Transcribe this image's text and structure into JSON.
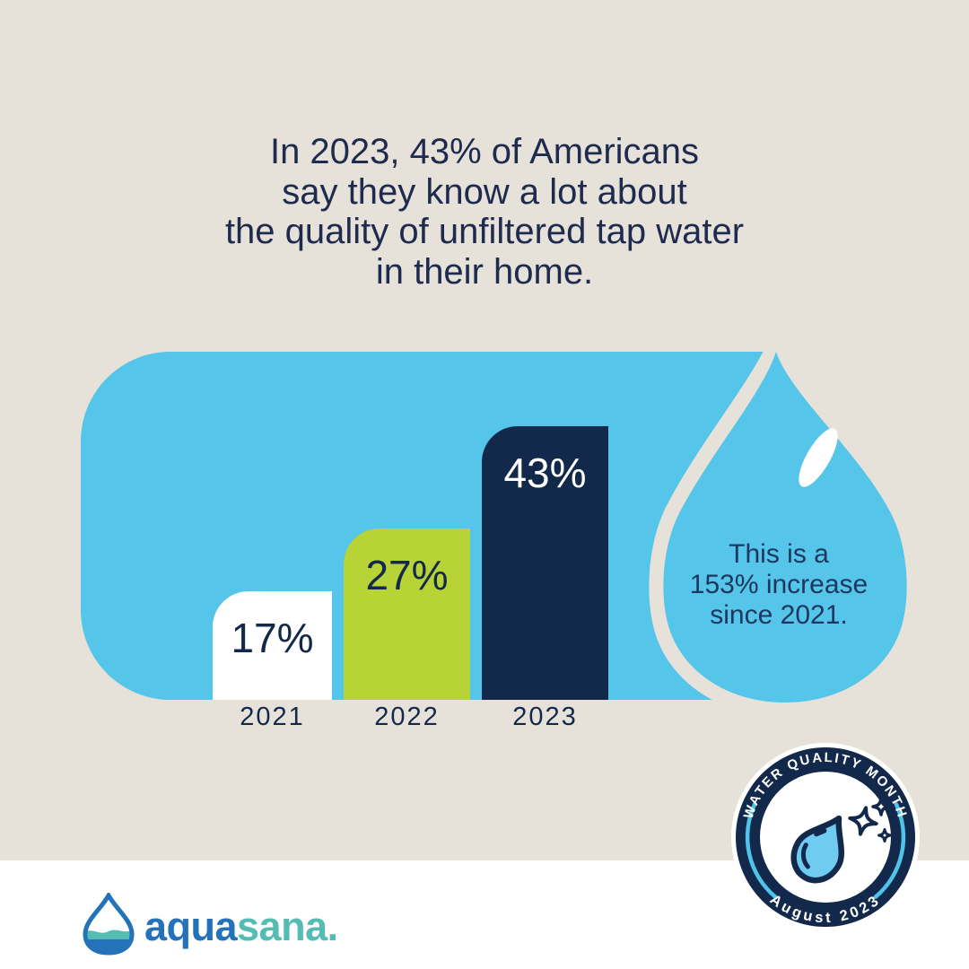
{
  "infographic": {
    "headline_lines": [
      "In 2023, 43% of Americans",
      "say they know a lot about",
      "the quality of unfiltered tap water",
      "in their home."
    ],
    "callout_lines": [
      "This is a",
      "153% increase",
      "since 2021."
    ],
    "badge": {
      "arc_top": "WATER QUALITY MONTH",
      "arc_bottom": "August 2023"
    },
    "logo": {
      "part1": "aqua",
      "part2": "sana",
      "suffix": "."
    }
  },
  "chart_data": {
    "type": "bar",
    "categories": [
      "2021",
      "2022",
      "2023"
    ],
    "values": [
      17,
      27,
      43
    ],
    "value_labels": [
      "17%",
      "27%",
      "43%"
    ],
    "unit": "percent of Americans",
    "title": "In 2023, 43% of Americans say they know a lot about the quality of unfiltered tap water in their home.",
    "annotation": "This is a 153% increase since 2021.",
    "ylim": [
      0,
      55
    ],
    "grid": false,
    "legend": false,
    "bar_colors": [
      "#FFFFFF",
      "#B7D335",
      "#13294B"
    ],
    "value_label_colors": [
      "#13294B",
      "#13294B",
      "#FFFFFF"
    ]
  },
  "colors": {
    "background_beige": "#E7E2D9",
    "background_white": "#FFFFFF",
    "sky_blue": "#55C5E9",
    "navy": "#13294B",
    "lime_green": "#B7D335",
    "headline_text": "#1E2B4E",
    "callout_text": "#1D3760",
    "badge_arc_cyan": "#4FC3EA",
    "badge_drop_fill": "#6FCBF0",
    "logo_blue": "#2472B9",
    "logo_teal": "#55BCB4"
  }
}
